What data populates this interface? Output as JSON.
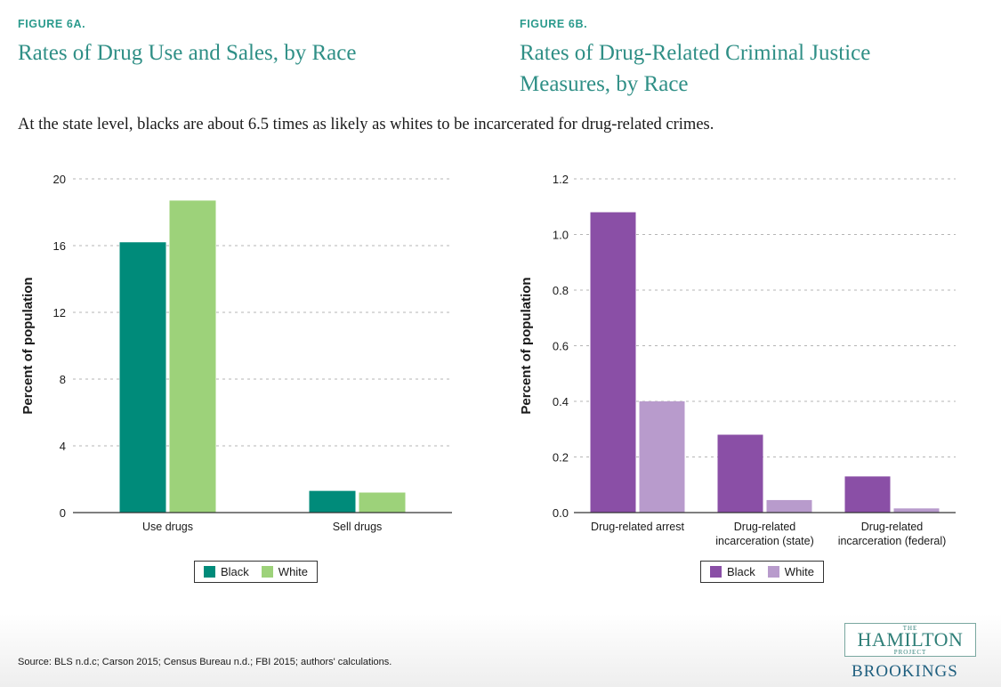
{
  "header": {
    "left_label": "FIGURE 6A.",
    "left_title": "Rates of Drug Use and Sales, by Race",
    "right_label": "FIGURE 6B.",
    "right_title_line1": "Rates of Drug-Related Criminal Justice",
    "right_title_line2": "Measures, by Race",
    "subtitle": "At the state level, blacks are about 6.5 times as likely as whites to be incarcerated for drug-related crimes."
  },
  "chart_data": [
    {
      "type": "bar",
      "title": "Rates of Drug Use and Sales, by Race",
      "categories": [
        "Use drugs",
        "Sell drugs"
      ],
      "series": [
        {
          "name": "Black",
          "values": [
            16.2,
            1.3
          ]
        },
        {
          "name": "White",
          "values": [
            18.7,
            1.2
          ]
        }
      ],
      "xlabel": "",
      "ylabel": "Percent of population",
      "ylim": [
        0,
        20
      ],
      "yticks": [
        0,
        4,
        8,
        12,
        16,
        20
      ],
      "ytick_labels": [
        "0",
        "4",
        "8",
        "12",
        "16",
        "20"
      ],
      "grid": true,
      "legend_position": "bottom",
      "colors": {
        "Black": "#008b7a",
        "White": "#9dd27a"
      }
    },
    {
      "type": "bar",
      "title": "Rates of Drug-Related Criminal Justice Measures, by Race",
      "categories": [
        "Drug-related arrest",
        "Drug-related incarceration (state)",
        "Drug-related incarceration (federal)"
      ],
      "category_lines": [
        [
          "Drug-related arrest"
        ],
        [
          "Drug-related",
          "incarceration (state)"
        ],
        [
          "Drug-related",
          "incarceration (federal)"
        ]
      ],
      "series": [
        {
          "name": "Black",
          "values": [
            1.08,
            0.28,
            0.13
          ]
        },
        {
          "name": "White",
          "values": [
            0.4,
            0.045,
            0.015
          ]
        }
      ],
      "xlabel": "",
      "ylabel": "Percent of population",
      "ylim": [
        0,
        1.2
      ],
      "yticks": [
        0,
        0.2,
        0.4,
        0.6,
        0.8,
        1.0,
        1.2
      ],
      "ytick_labels": [
        "0.0",
        "0.2",
        "0.4",
        "0.6",
        "0.8",
        "1.0",
        "1.2"
      ],
      "grid": true,
      "legend_position": "bottom",
      "colors": {
        "Black": "#8a4fa6",
        "White": "#b89bcc"
      }
    }
  ],
  "footer": {
    "source": "Source: BLS n.d.c; Carson 2015; Census Bureau n.d.; FBI 2015; authors' calculations.",
    "logo_the": "THE",
    "logo_hamilton": "HAMILTON",
    "logo_project": "PROJECT",
    "logo_brookings": "BROOKINGS"
  }
}
